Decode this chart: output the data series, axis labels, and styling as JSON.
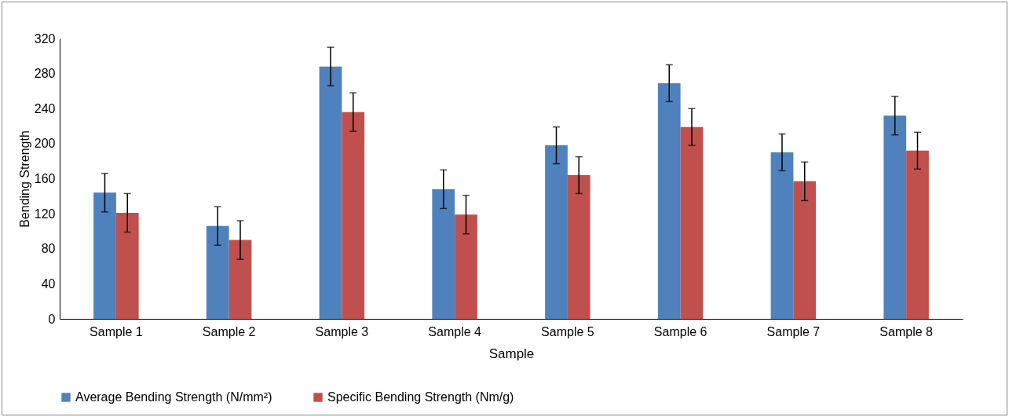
{
  "chart_data": {
    "type": "bar",
    "xlabel": "Sample",
    "ylabel": "Bending Strength",
    "categories": [
      "Sample 1",
      "Sample 2",
      "Sample 3",
      "Sample 4",
      "Sample 5",
      "Sample 6",
      "Sample 7",
      "Sample 8"
    ],
    "series": [
      {
        "name": "Average Bending Strength (N/mm²)",
        "color": "#4f81bd",
        "values": [
          144,
          106,
          288,
          148,
          198,
          269,
          190,
          232
        ],
        "errors": [
          22,
          22,
          22,
          22,
          21,
          21,
          21,
          22
        ]
      },
      {
        "name": "Specific Bending Strength (Nm/g)",
        "color": "#c0504d",
        "values": [
          121,
          90,
          236,
          119,
          164,
          219,
          157,
          192
        ],
        "errors": [
          22,
          22,
          22,
          22,
          21,
          21,
          22,
          21
        ]
      }
    ],
    "ylim": [
      0,
      320
    ],
    "yticks": [
      0,
      40,
      80,
      120,
      160,
      200,
      240,
      280,
      320
    ],
    "grid": false,
    "legend": "bottom"
  }
}
